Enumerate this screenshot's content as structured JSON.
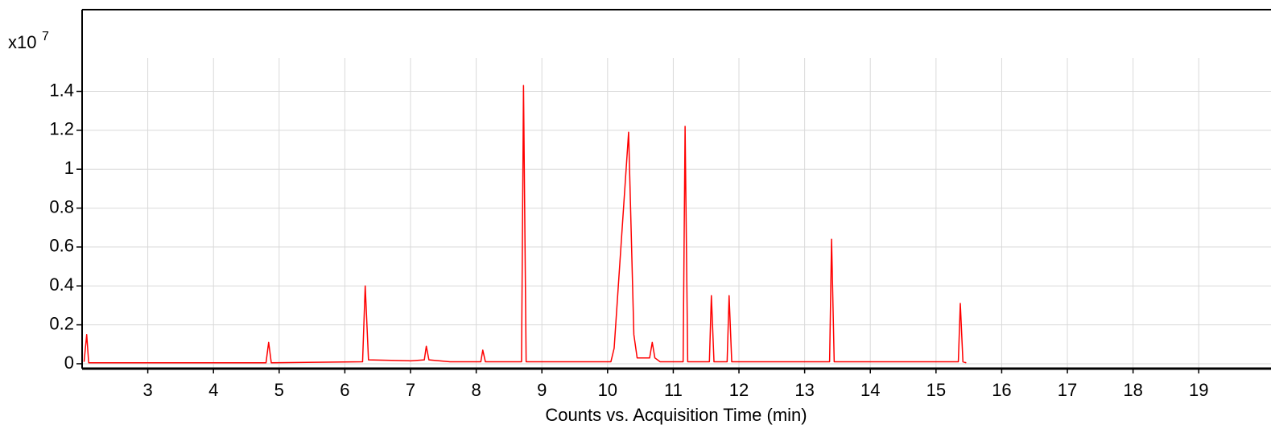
{
  "chart_data": {
    "type": "line",
    "x_label": "Counts vs. Acquisition Time (min)",
    "y_scale": {
      "base": "x10",
      "exponent": 7
    },
    "color": "#ff0000",
    "x": [
      2.03,
      2.07,
      2.1,
      4.8,
      4.84,
      4.88,
      6.27,
      6.31,
      6.36,
      7.0,
      7.21,
      7.24,
      7.28,
      7.6,
      8.07,
      8.1,
      8.14,
      8.69,
      8.72,
      8.76,
      10.05,
      10.1,
      10.32,
      10.4,
      10.45,
      10.64,
      10.68,
      10.72,
      10.8,
      11.15,
      11.18,
      11.22,
      11.55,
      11.58,
      11.62,
      11.82,
      11.85,
      11.89,
      13.38,
      13.41,
      13.45,
      15.34,
      15.37,
      15.41,
      15.46
    ],
    "values": [
      0.01,
      0.15,
      0.005,
      0.005,
      0.11,
      0.005,
      0.01,
      0.4,
      0.02,
      0.015,
      0.02,
      0.09,
      0.02,
      0.01,
      0.01,
      0.07,
      0.01,
      0.01,
      1.43,
      0.01,
      0.01,
      0.08,
      1.19,
      0.15,
      0.03,
      0.03,
      0.11,
      0.03,
      0.01,
      0.01,
      1.22,
      0.01,
      0.01,
      0.35,
      0.01,
      0.01,
      0.35,
      0.01,
      0.01,
      0.64,
      0.01,
      0.01,
      0.31,
      0.01,
      0.005
    ],
    "xlim": [
      2,
      20.1
    ],
    "ylim": [
      -0.025,
      1.82
    ],
    "xticks": [
      3,
      4,
      5,
      6,
      7,
      8,
      9,
      10,
      11,
      12,
      13,
      14,
      15,
      16,
      17,
      18,
      19
    ],
    "yticks": [
      0,
      0.2,
      0.4,
      0.6,
      0.8,
      1,
      1.2,
      1.4
    ],
    "grid": true
  }
}
